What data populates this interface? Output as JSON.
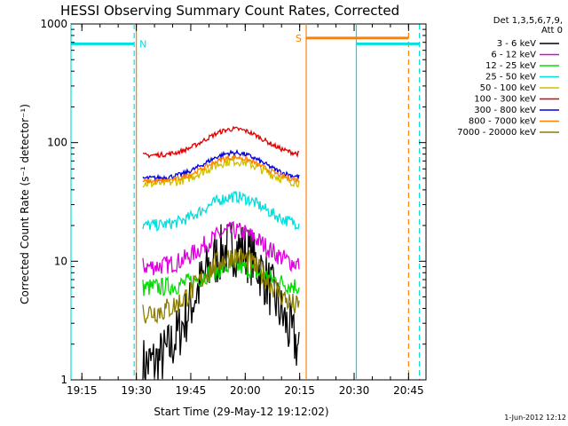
{
  "chart_data": {
    "type": "line",
    "title": "HESSI Observing Summary Count Rates, Corrected",
    "xlabel": "Start Time (29-May-12 19:12:02)",
    "ylabel": "Corrected Count Rate (s⁻¹ detector⁻¹)",
    "yscale": "log",
    "ylim": [
      1,
      1000
    ],
    "xlim_minutes": [
      19.2,
      20.83
    ],
    "xtick_labels": [
      "19:15",
      "19:30",
      "19:45",
      "20:00",
      "20:15",
      "20:30",
      "20:45"
    ],
    "xtick_values": [
      19.25,
      19.5,
      19.75,
      20.0,
      20.25,
      20.5,
      20.75
    ],
    "ytick_labels": [
      "1",
      "10",
      "100",
      "1000"
    ],
    "ytick_values": [
      1,
      10,
      100,
      1000
    ],
    "grid": false,
    "legend_position": "right",
    "legend_header": [
      "Det 1,3,5,6,7,9,",
      "Att 0"
    ],
    "series": [
      {
        "name": "3 - 6 keV",
        "color": "#000000",
        "start": 19.53,
        "end": 20.25,
        "base": 1.3,
        "peak": 13,
        "noise": 0.25
      },
      {
        "name": "6 - 12 keV",
        "color": "#e000e0",
        "start": 19.53,
        "end": 20.25,
        "base": 9,
        "peak": 18,
        "noise": 0.08
      },
      {
        "name": "12 - 25 keV",
        "color": "#00e000",
        "start": 19.53,
        "end": 20.25,
        "base": 6,
        "peak": 9,
        "noise": 0.08
      },
      {
        "name": "25 - 50 keV",
        "color": "#00e0e0",
        "start": 19.53,
        "end": 20.25,
        "base": 20,
        "peak": 35,
        "noise": 0.05
      },
      {
        "name": "50 - 100 keV",
        "color": "#d0c000",
        "start": 19.53,
        "end": 20.25,
        "base": 45,
        "peak": 70,
        "noise": 0.04
      },
      {
        "name": "100 - 300 keV",
        "color": "#e00000",
        "start": 19.53,
        "end": 20.25,
        "base": 78,
        "peak": 130,
        "noise": 0.02
      },
      {
        "name": "300 - 800 keV",
        "color": "#0000e0",
        "start": 19.53,
        "end": 20.25,
        "base": 50,
        "peak": 82,
        "noise": 0.02
      },
      {
        "name": "800 - 7000 keV",
        "color": "#ff8000",
        "start": 19.53,
        "end": 20.25,
        "base": 47,
        "peak": 75,
        "noise": 0.02
      },
      {
        "name": "7000 - 20000 keV",
        "color": "#8b7d00",
        "start": 19.53,
        "end": 20.25,
        "base": 3.7,
        "peak": 11,
        "noise": 0.1
      }
    ],
    "flag_bars": [
      {
        "label": "N",
        "color": "#00e0e0",
        "x_start": 19.2,
        "x_end": 19.49,
        "y": 680,
        "dashed_marker": 19.49
      },
      {
        "label": "S",
        "color": "#ff8000",
        "x_start": 20.28,
        "x_end": 20.75,
        "y": 760,
        "dashed_marker": 20.75
      },
      {
        "label": "",
        "color": "#00e0e0",
        "x_start": 20.51,
        "x_end": 20.8,
        "y": 680,
        "dashed_marker": 20.8
      }
    ],
    "markers": [
      {
        "color": "#00e0e0",
        "x": 19.2,
        "style": "solid"
      },
      {
        "color": "#ff8000",
        "x": 19.5,
        "style": "solid"
      },
      {
        "color": "#ff8000",
        "x": 20.28,
        "style": "solid"
      },
      {
        "color": "#00e0e0",
        "x": 20.51,
        "style": "solid"
      }
    ],
    "footer": "1-Jun-2012 12:12"
  }
}
